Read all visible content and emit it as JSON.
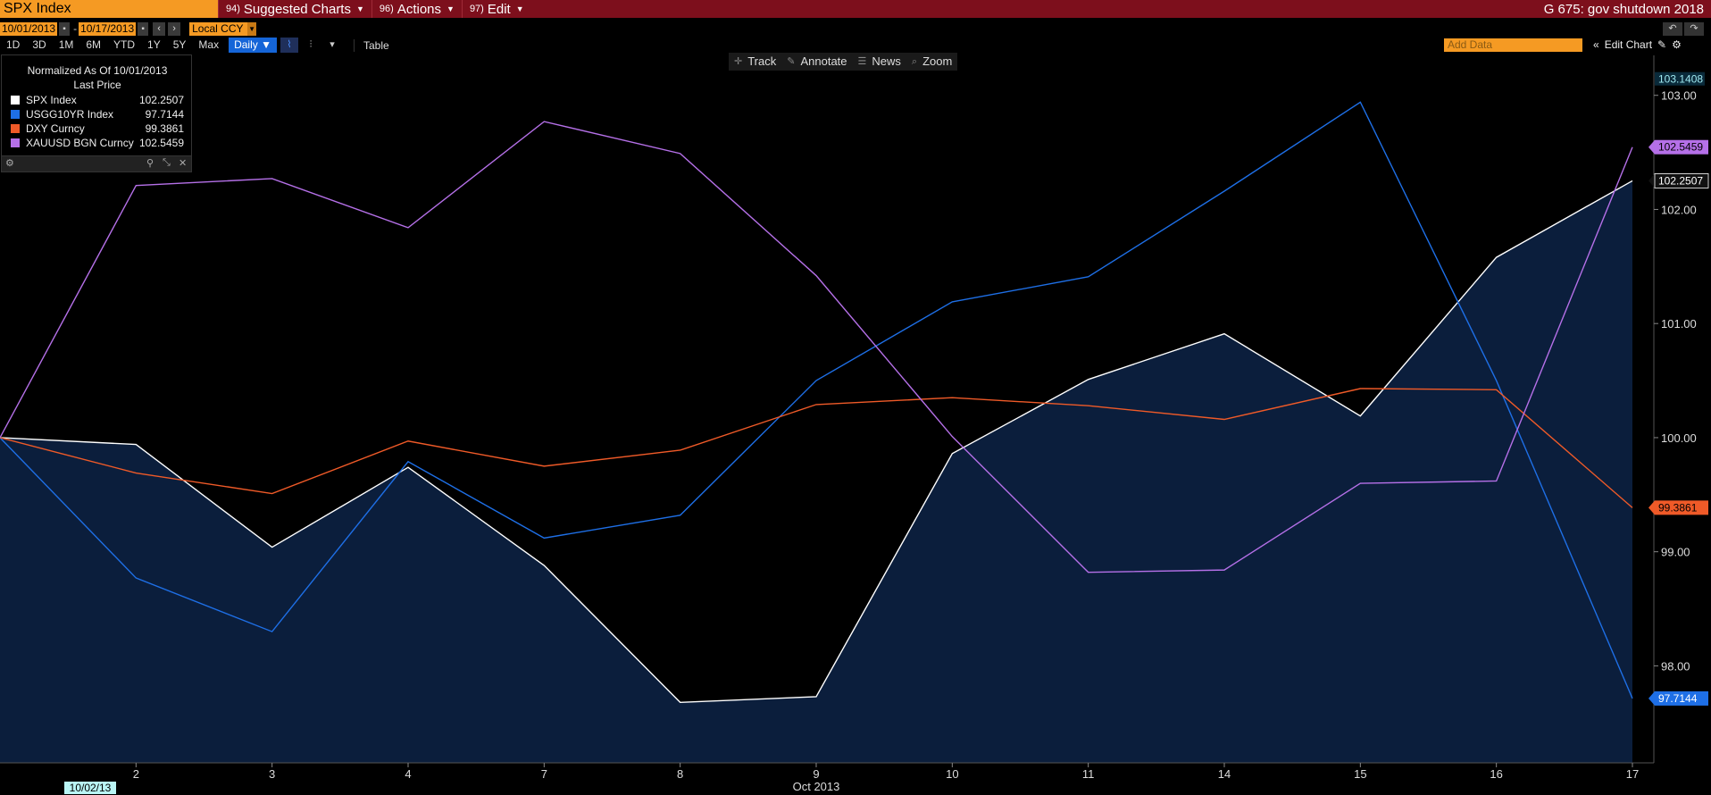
{
  "topbar": {
    "ticker": "SPX Index",
    "menus": [
      {
        "num": "94)",
        "label": "Suggested Charts"
      },
      {
        "num": "96)",
        "label": "Actions"
      },
      {
        "num": "97)",
        "label": "Edit"
      }
    ],
    "right_title": "G 675: gov shutdown 2018"
  },
  "daterow": {
    "start_date": "10/01/2013",
    "end_date": "10/17/2013",
    "separator": "-",
    "currency": "Local CCY"
  },
  "periodrow": {
    "periods": [
      "1D",
      "3D",
      "1M",
      "6M",
      "YTD",
      "1Y",
      "5Y",
      "Max"
    ],
    "frequency": "Daily ▼",
    "table_label": "Table",
    "add_data_placeholder": "Add Data",
    "edit_chart_label": "Edit Chart"
  },
  "chart_toolbar": {
    "items": [
      {
        "icon": "crosshair-icon",
        "label": "Track"
      },
      {
        "icon": "pencil-icon",
        "label": "Annotate"
      },
      {
        "icon": "news-icon",
        "label": "News"
      },
      {
        "icon": "magnifier-icon",
        "label": "Zoom"
      }
    ]
  },
  "legend": {
    "title": "Normalized As Of 10/01/2013",
    "subtitle": "Last Price",
    "rows": [
      {
        "name": "SPX Index",
        "value": "102.2507",
        "color": "#ffffff"
      },
      {
        "name": "USGG10YR Index",
        "value": "97.7144",
        "color": "#1e6fe6"
      },
      {
        "name": "DXY Curncy",
        "value": "99.3861",
        "color": "#ef5a28"
      },
      {
        "name": "XAUUSD BGN Curncy",
        "value": "102.5459",
        "color": "#b570e8"
      }
    ]
  },
  "chart_data": {
    "type": "line",
    "x": [
      "1",
      "2",
      "3",
      "4",
      "7",
      "8",
      "9",
      "10",
      "11",
      "14",
      "15",
      "16",
      "17"
    ],
    "tick_labels": [
      "2",
      "3",
      "4",
      "7",
      "8",
      "9",
      "10",
      "11",
      "14",
      "15",
      "16",
      "17"
    ],
    "xlabel": "Oct 2013",
    "x_start_marker": "10/02/13",
    "ylim": [
      97.15,
      103.35
    ],
    "yticks": [
      "103.00",
      "102.00",
      "101.00",
      "100.00",
      "99.00",
      "98.00"
    ],
    "ytick_values": [
      103.0,
      102.0,
      101.0,
      100.0,
      99.0,
      98.0
    ],
    "top_label": "103.1408",
    "grid": false,
    "legend_position": "top-left",
    "series": [
      {
        "name": "SPX Index",
        "color": "#ffffff",
        "fill": true,
        "last": "102.2507",
        "values": [
          100.0,
          99.94,
          99.04,
          99.74,
          98.88,
          97.68,
          97.73,
          99.86,
          100.51,
          100.91,
          100.19,
          101.58,
          102.2507
        ]
      },
      {
        "name": "USGG10YR Index",
        "color": "#1e6fe6",
        "fill": false,
        "last": "97.7144",
        "values": [
          100.0,
          98.77,
          98.3,
          99.79,
          99.12,
          99.32,
          100.5,
          101.19,
          101.41,
          102.16,
          102.94,
          100.5,
          97.7144
        ]
      },
      {
        "name": "DXY Curncy",
        "color": "#ef5a28",
        "fill": false,
        "last": "99.3861",
        "values": [
          100.0,
          99.69,
          99.51,
          99.97,
          99.75,
          99.89,
          100.29,
          100.35,
          100.28,
          100.16,
          100.43,
          100.42,
          99.3861
        ]
      },
      {
        "name": "XAUUSD BGN Curncy",
        "color": "#b570e8",
        "fill": false,
        "last": "102.5459",
        "values": [
          100.0,
          102.21,
          102.27,
          101.84,
          102.77,
          102.49,
          101.42,
          100.01,
          98.82,
          98.84,
          99.6,
          99.62,
          102.5459
        ]
      }
    ]
  }
}
